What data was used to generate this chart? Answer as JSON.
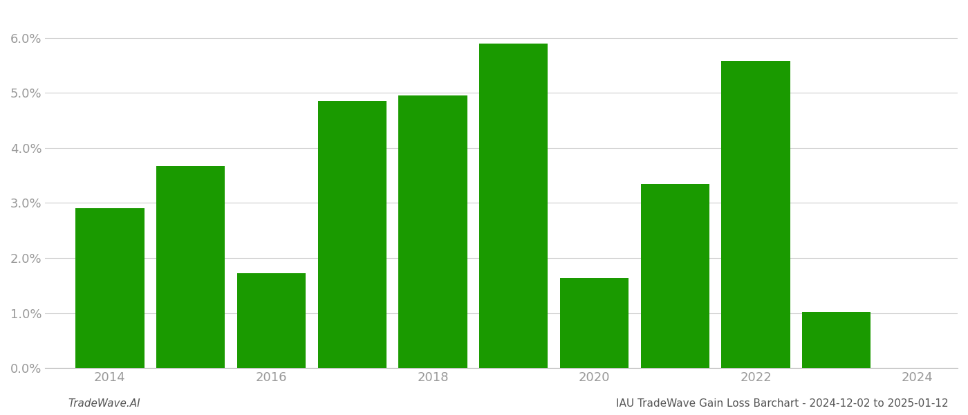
{
  "years": [
    2014,
    2015,
    2016,
    2017,
    2018,
    2019,
    2020,
    2021,
    2022,
    2023
  ],
  "values": [
    0.029,
    0.0367,
    0.0172,
    0.0485,
    0.0495,
    0.059,
    0.0163,
    0.0335,
    0.0558,
    0.0102
  ],
  "bar_color": "#1a9a00",
  "background_color": "#ffffff",
  "footer_left": "TradeWave.AI",
  "footer_right": "IAU TradeWave Gain Loss Barchart - 2024-12-02 to 2025-01-12",
  "ylim": [
    0.0,
    0.065
  ],
  "yticks": [
    0.0,
    0.01,
    0.02,
    0.03,
    0.04,
    0.05,
    0.06
  ],
  "xticks": [
    2014,
    2016,
    2018,
    2020,
    2022,
    2024
  ],
  "xlim_left": 2013.2,
  "xlim_right": 2024.5,
  "grid_color": "#cccccc",
  "tick_color": "#999999",
  "footer_fontsize": 11,
  "tick_fontsize": 13,
  "bar_width": 0.85
}
